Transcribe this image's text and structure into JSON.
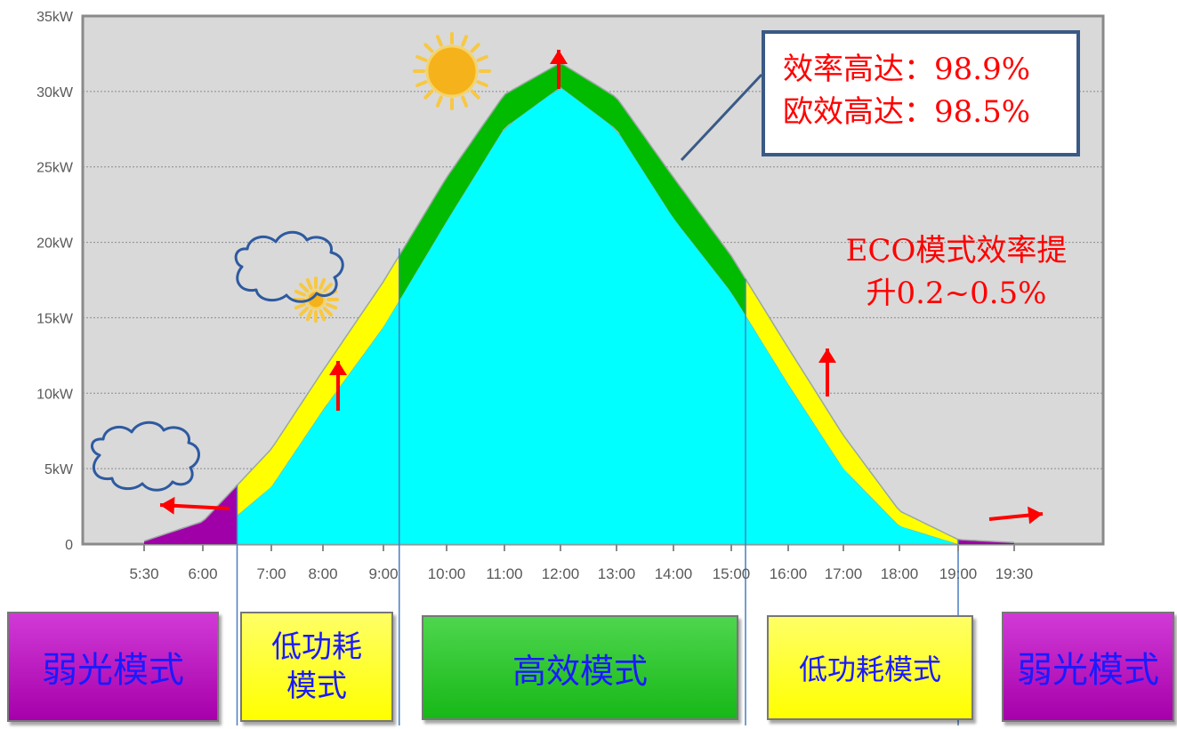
{
  "chart_data": {
    "type": "area",
    "y_ticks": [
      "0",
      "5kW",
      "10kW",
      "15kW",
      "20kW",
      "25kW",
      "30kW",
      "35kW"
    ],
    "x_ticks": [
      "5:30",
      "6:00",
      "7:00",
      "8:00",
      "9:00",
      "10:00",
      "11:00",
      "12:00",
      "13:00",
      "14:00",
      "15:00",
      "16:00",
      "17:00",
      "18:00",
      "19:00",
      "19:30"
    ],
    "ylim": [
      0,
      35
    ],
    "grid": true,
    "series": [
      {
        "x": [
          "5:30",
          "6:00",
          "7:00",
          "8:00",
          "9:00",
          "10:00",
          "11:00",
          "12:00",
          "13:00",
          "14:00",
          "15:00",
          "16:00",
          "17:00",
          "18:00",
          "19:00",
          "19:30"
        ],
        "values": [
          0.2,
          1.5,
          6.3,
          11.5,
          17.4,
          24.3,
          29.8,
          31.9,
          29.6,
          24.3,
          19.1,
          13.0,
          7.2,
          2.2,
          0.3,
          0.1
        ]
      },
      {
        "x": [
          "5:30",
          "6:00",
          "7:00",
          "8:00",
          "9:00",
          "10:00",
          "11:00",
          "12:00",
          "13:00",
          "14:00",
          "15:00",
          "16:00",
          "17:00",
          "18:00",
          "19:00",
          "19:30"
        ],
        "values": [
          0.0,
          0.0,
          3.8,
          8.9,
          14.4,
          21.4,
          27.6,
          30.3,
          27.5,
          21.6,
          16.7,
          10.6,
          5.0,
          1.2,
          0.0,
          0.0
        ]
      }
    ],
    "zones": [
      {
        "label": "弱光模式",
        "from": "5:30",
        "to": "6:30",
        "color": "#a000a8"
      },
      {
        "label": "低功耗模式",
        "from": "6:30",
        "to": "9:15",
        "color": "#ffff00"
      },
      {
        "label": "高效模式",
        "from": "9:15",
        "to": "15:15",
        "color": "#00bb00"
      },
      {
        "label": "低功耗模式",
        "from": "15:15",
        "to": "19:00",
        "color": "#ffff00"
      },
      {
        "label": "弱光模式",
        "from": "19:00",
        "to": "19:30",
        "color": "#a000a8"
      }
    ]
  },
  "callout": {
    "line1": "效率高达：98.9%",
    "line2": "欧效高达：98.5%"
  },
  "eco": {
    "line1": "ECO模式效率提",
    "line2": "升0.2~0.5%"
  },
  "modes": {
    "weak_left": "弱光模式",
    "low_left_1": "低功耗",
    "low_left_2": "模式",
    "high": "高效模式",
    "low_right": "低功耗模式",
    "weak_right": "弱光模式"
  },
  "colors": {
    "plot_bg": "#d9d9d9",
    "cyan": "#00ffff",
    "green": "#00bb00",
    "yellow": "#ffff00",
    "purple": "#a000a8",
    "arrow": "#ff0000",
    "divider": "#4a7fc0"
  },
  "icons": [
    "sun-icon",
    "cloud-icon",
    "cloud-with-sun-icon",
    "arrow-up-icon",
    "arrow-left-icon",
    "arrow-right-icon"
  ]
}
